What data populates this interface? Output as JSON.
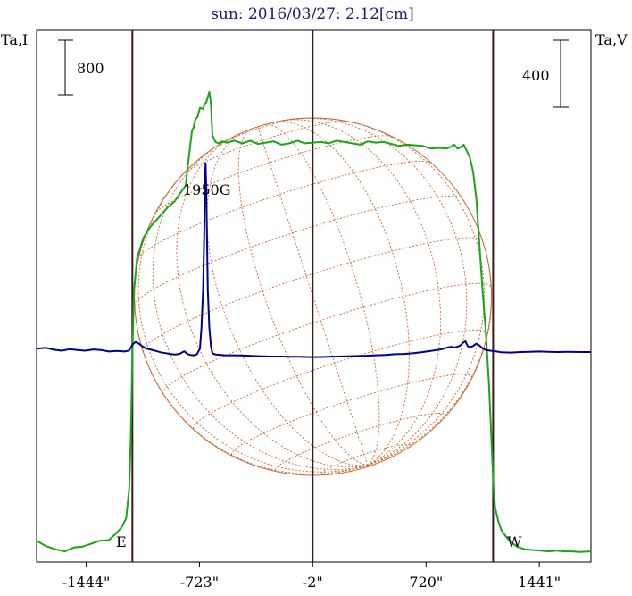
{
  "title": "sun: 2016/03/27: 2.12[cm]",
  "left_axis_label": "Ta,I",
  "right_axis_label": "Ta,V",
  "left_scale_label": "800",
  "right_scale_label": "400",
  "peak_annotation": "1950G",
  "east_label": "E",
  "west_label": "W",
  "colors": {
    "background": "#ffffff",
    "intensity": "#1aa51a",
    "polarization": "#00008b",
    "limb_lines": "#3a1a1a",
    "grid": "#c8662e",
    "title": "#1a1a7a"
  },
  "chart_data": {
    "type": "line",
    "title": "sun: 2016/03/27: 2.12[cm]",
    "x_unit": "arcsec",
    "xlim": [
      -1760,
      1770
    ],
    "x_ticks": [
      {
        "value": -1444,
        "label": "-1444\""
      },
      {
        "value": -723,
        "label": "-723\""
      },
      {
        "value": -2,
        "label": "-2\""
      },
      {
        "value": 720,
        "label": "720\""
      },
      {
        "value": 1441,
        "label": "1441\""
      }
    ],
    "limb_markers": [
      -1150,
      -2,
      1147
    ],
    "series": [
      {
        "name": "Ta,I",
        "color": "#1aa51a",
        "ylim_relative": [
          0,
          3600
        ],
        "points": [
          [
            -1760,
            100
          ],
          [
            -1700,
            60
          ],
          [
            -1640,
            35
          ],
          [
            -1580,
            20
          ],
          [
            -1520,
            50
          ],
          [
            -1470,
            55
          ],
          [
            -1420,
            75
          ],
          [
            -1360,
            100
          ],
          [
            -1300,
            105
          ],
          [
            -1260,
            150
          ],
          [
            -1220,
            200
          ],
          [
            -1190,
            270
          ],
          [
            -1170,
            500
          ],
          [
            -1160,
            900
          ],
          [
            -1150,
            1500
          ],
          [
            -1140,
            2000
          ],
          [
            -1120,
            2250
          ],
          [
            -1080,
            2400
          ],
          [
            -1040,
            2480
          ],
          [
            -980,
            2560
          ],
          [
            -920,
            2640
          ],
          [
            -880,
            2680
          ],
          [
            -840,
            2750
          ],
          [
            -810,
            2800
          ],
          [
            -800,
            2920
          ],
          [
            -780,
            3120
          ],
          [
            -770,
            3220
          ],
          [
            -760,
            3240
          ],
          [
            -750,
            3300
          ],
          [
            -735,
            3320
          ],
          [
            -720,
            3390
          ],
          [
            -700,
            3380
          ],
          [
            -690,
            3420
          ],
          [
            -680,
            3430
          ],
          [
            -660,
            3510
          ],
          [
            -650,
            3420
          ],
          [
            -640,
            3180
          ],
          [
            -620,
            3130
          ],
          [
            -600,
            3120
          ],
          [
            -580,
            3135
          ],
          [
            -550,
            3125
          ],
          [
            -500,
            3140
          ],
          [
            -450,
            3120
          ],
          [
            -400,
            3140
          ],
          [
            -350,
            3115
          ],
          [
            -300,
            3125
          ],
          [
            -250,
            3135
          ],
          [
            -200,
            3110
          ],
          [
            -150,
            3120
          ],
          [
            -100,
            3140
          ],
          [
            -50,
            3120
          ],
          [
            0,
            3125
          ],
          [
            50,
            3130
          ],
          [
            100,
            3120
          ],
          [
            150,
            3140
          ],
          [
            200,
            3130
          ],
          [
            250,
            3120
          ],
          [
            300,
            3110
          ],
          [
            350,
            3135
          ],
          [
            400,
            3125
          ],
          [
            450,
            3130
          ],
          [
            500,
            3115
          ],
          [
            550,
            3100
          ],
          [
            600,
            3110
          ],
          [
            650,
            3105
          ],
          [
            700,
            3100
          ],
          [
            750,
            3080
          ],
          [
            800,
            3085
          ],
          [
            850,
            3080
          ],
          [
            880,
            3095
          ],
          [
            900,
            3110
          ],
          [
            920,
            3080
          ],
          [
            940,
            3090
          ],
          [
            960,
            3110
          ],
          [
            980,
            3060
          ],
          [
            1000,
            3010
          ],
          [
            1020,
            2900
          ],
          [
            1040,
            2700
          ],
          [
            1060,
            2350
          ],
          [
            1080,
            2000
          ],
          [
            1100,
            1700
          ],
          [
            1120,
            1300
          ],
          [
            1135,
            900
          ],
          [
            1150,
            500
          ],
          [
            1160,
            350
          ],
          [
            1180,
            250
          ],
          [
            1200,
            180
          ],
          [
            1230,
            130
          ],
          [
            1260,
            90
          ],
          [
            1300,
            55
          ],
          [
            1350,
            35
          ],
          [
            1400,
            30
          ],
          [
            1450,
            25
          ],
          [
            1500,
            20
          ],
          [
            1550,
            25
          ],
          [
            1600,
            20
          ],
          [
            1650,
            20
          ],
          [
            1700,
            15
          ],
          [
            1770,
            20
          ]
        ]
      },
      {
        "name": "Ta,V",
        "color": "#00008b",
        "ylim_relative": [
          0,
          1800
        ],
        "points": [
          [
            -1760,
            780
          ],
          [
            -1700,
            783
          ],
          [
            -1650,
            776
          ],
          [
            -1600,
            772
          ],
          [
            -1550,
            778
          ],
          [
            -1500,
            775
          ],
          [
            -1450,
            772
          ],
          [
            -1400,
            777
          ],
          [
            -1350,
            775
          ],
          [
            -1300,
            769
          ],
          [
            -1250,
            771
          ],
          [
            -1200,
            769
          ],
          [
            -1170,
            773
          ],
          [
            -1150,
            795
          ],
          [
            -1130,
            805
          ],
          [
            -1110,
            800
          ],
          [
            -1090,
            790
          ],
          [
            -1060,
            780
          ],
          [
            -1030,
            776
          ],
          [
            -1000,
            771
          ],
          [
            -970,
            766
          ],
          [
            -940,
            763
          ],
          [
            -910,
            760
          ],
          [
            -880,
            758
          ],
          [
            -850,
            760
          ],
          [
            -820,
            770
          ],
          [
            -800,
            760
          ],
          [
            -780,
            756
          ],
          [
            -760,
            755
          ],
          [
            -740,
            758
          ],
          [
            -720,
            780
          ],
          [
            -710,
            860
          ],
          [
            -700,
            1000
          ],
          [
            -692,
            1230
          ],
          [
            -688,
            1420
          ],
          [
            -684,
            1485
          ],
          [
            -680,
            1400
          ],
          [
            -675,
            1200
          ],
          [
            -670,
            1000
          ],
          [
            -660,
            860
          ],
          [
            -650,
            790
          ],
          [
            -640,
            762
          ],
          [
            -620,
            758
          ],
          [
            -600,
            757
          ],
          [
            -560,
            755
          ],
          [
            -500,
            755
          ],
          [
            -440,
            754
          ],
          [
            -380,
            752
          ],
          [
            -320,
            751
          ],
          [
            -260,
            750
          ],
          [
            -200,
            750
          ],
          [
            -140,
            749
          ],
          [
            -80,
            749
          ],
          [
            -20,
            748
          ],
          [
            40,
            748
          ],
          [
            100,
            749
          ],
          [
            160,
            750
          ],
          [
            220,
            751
          ],
          [
            280,
            752
          ],
          [
            340,
            753
          ],
          [
            400,
            755
          ],
          [
            460,
            756
          ],
          [
            520,
            759
          ],
          [
            580,
            760
          ],
          [
            640,
            763
          ],
          [
            700,
            767
          ],
          [
            760,
            772
          ],
          [
            820,
            778
          ],
          [
            860,
            785
          ],
          [
            880,
            787
          ],
          [
            900,
            784
          ],
          [
            920,
            787
          ],
          [
            940,
            793
          ],
          [
            955,
            802
          ],
          [
            970,
            808
          ],
          [
            985,
            790
          ],
          [
            1000,
            785
          ],
          [
            1020,
            790
          ],
          [
            1040,
            799
          ],
          [
            1060,
            792
          ],
          [
            1080,
            781
          ],
          [
            1100,
            775
          ],
          [
            1130,
            772
          ],
          [
            1160,
            770
          ],
          [
            1200,
            766
          ],
          [
            1260,
            765
          ],
          [
            1320,
            767
          ],
          [
            1380,
            768
          ],
          [
            1440,
            769
          ],
          [
            1500,
            768
          ],
          [
            1560,
            767
          ],
          [
            1620,
            768
          ],
          [
            1700,
            767
          ],
          [
            1770,
            767
          ]
        ]
      }
    ],
    "scale_bars": [
      {
        "axis": "left",
        "value": 800
      },
      {
        "axis": "right",
        "value": 400
      }
    ],
    "annotations": [
      {
        "text": "1950G",
        "x": -720,
        "series": "Ta,I"
      },
      {
        "text": "E",
        "x": -1230
      },
      {
        "text": "W",
        "x": 1230
      }
    ],
    "grid": false
  }
}
